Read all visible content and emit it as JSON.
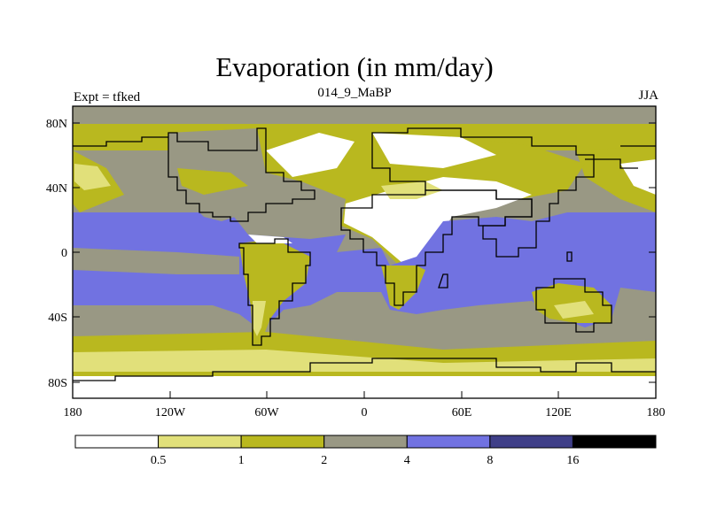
{
  "title": "Evaporation (in mm/day)",
  "left_label": "Expt = tfked",
  "center_label": "014_9_MaBP",
  "right_label": "JJA",
  "lat_ticks": [
    "80N",
    "40N",
    "0",
    "40S",
    "80S"
  ],
  "lon_ticks": [
    "180",
    "120W",
    "60W",
    "0",
    "60E",
    "120E",
    "180"
  ],
  "legend": {
    "breaks": [
      "0.5",
      "1",
      "2",
      "4",
      "8",
      "16"
    ],
    "colors": [
      "#ffffff",
      "#e1e07a",
      "#b9b81f",
      "#999884",
      "#7172e1",
      "#3f3f88",
      "#000000"
    ]
  },
  "colors": {
    "lt_half": "#ffffff",
    "half_to_1": "#e1e07a",
    "one_to_2": "#b9b81f",
    "two_to_4": "#999884",
    "four_to_8": "#7172e1",
    "eight_to_16": "#3f3f88",
    "gt_16": "#000000"
  }
}
